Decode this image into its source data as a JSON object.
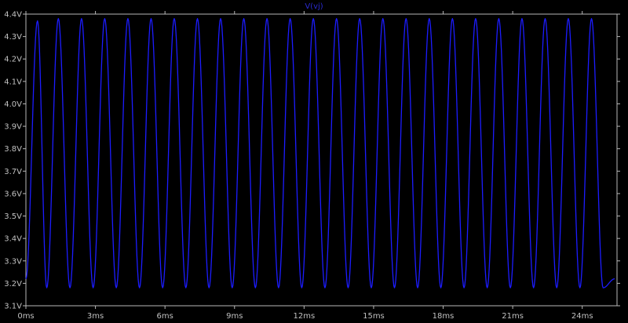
{
  "chart_data": {
    "type": "line",
    "title": "V(vj)",
    "x_unit": "ms",
    "y_unit": "V",
    "xlim": [
      0,
      25.5
    ],
    "ylim": [
      3.1,
      4.4
    ],
    "x_ticks": [
      0,
      3,
      6,
      9,
      12,
      15,
      18,
      21,
      24
    ],
    "x_tick_labels": [
      "0ms",
      "3ms",
      "6ms",
      "9ms",
      "12ms",
      "15ms",
      "18ms",
      "21ms",
      "24ms"
    ],
    "y_ticks": [
      3.1,
      3.2,
      3.3,
      3.4,
      3.5,
      3.6,
      3.7,
      3.8,
      3.9,
      4.0,
      4.1,
      4.2,
      4.3,
      4.4
    ],
    "y_tick_labels": [
      "3.1V",
      "3.2V",
      "3.3V",
      "3.4V",
      "3.5V",
      "3.6V",
      "3.7V",
      "3.8V",
      "3.9V",
      "4.0V",
      "4.1V",
      "4.2V",
      "4.3V",
      "4.4V"
    ],
    "grid": false,
    "series": [
      {
        "name": "V(vj)",
        "color": "#1c1cff",
        "x": [
          0,
          0.5,
          0.9,
          1.4,
          1.9,
          2.4,
          2.9,
          3.4,
          3.9,
          4.4,
          4.9,
          5.4,
          5.9,
          6.4,
          6.9,
          7.4,
          7.9,
          8.4,
          8.9,
          9.4,
          9.9,
          10.4,
          10.9,
          11.4,
          11.9,
          12.4,
          12.9,
          13.4,
          13.9,
          14.4,
          14.9,
          15.4,
          15.9,
          16.4,
          16.9,
          17.4,
          17.9,
          18.4,
          18.9,
          19.4,
          19.9,
          20.4,
          20.9,
          21.4,
          21.9,
          22.4,
          22.9,
          23.4,
          23.9,
          24.4,
          24.9,
          25.4
        ],
        "y": [
          3.22,
          4.37,
          3.18,
          4.38,
          3.18,
          4.38,
          3.18,
          4.38,
          3.18,
          4.38,
          3.18,
          4.38,
          3.18,
          4.38,
          3.18,
          4.38,
          3.18,
          4.38,
          3.18,
          4.38,
          3.18,
          4.38,
          3.18,
          4.38,
          3.18,
          4.38,
          3.18,
          4.38,
          3.18,
          4.38,
          3.18,
          4.38,
          3.18,
          4.38,
          3.18,
          4.38,
          3.18,
          4.38,
          3.18,
          4.38,
          3.18,
          4.38,
          3.18,
          4.38,
          3.18,
          4.38,
          3.18,
          4.38,
          3.18,
          4.38,
          3.18,
          3.22
        ]
      }
    ]
  },
  "colors": {
    "background": "#000000",
    "axis": "#b8b8b8",
    "title": "#2a2acf"
  }
}
